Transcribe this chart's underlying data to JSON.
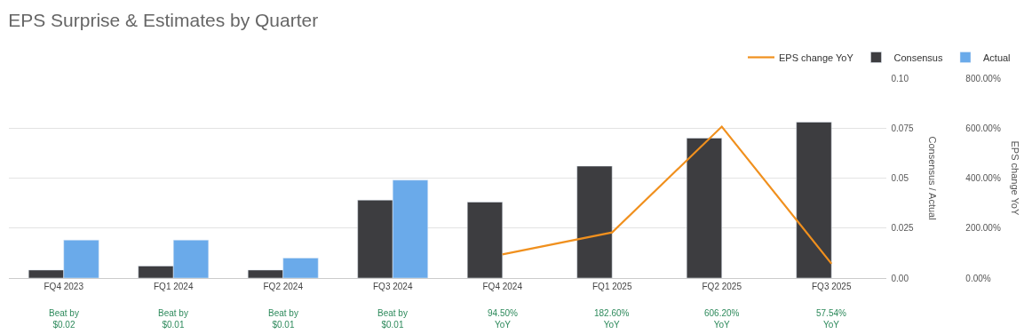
{
  "chart_data": {
    "type": "bar",
    "title": "EPS Surprise & Estimates by Quarter",
    "categories": [
      "FQ4 2023",
      "FQ1 2024",
      "FQ2 2024",
      "FQ3 2024",
      "FQ4 2024",
      "FQ1 2025",
      "FQ2 2025",
      "FQ3 2025"
    ],
    "series": [
      {
        "name": "EPS change YoY",
        "type": "line",
        "axis": "y2",
        "color": "#f0901e",
        "values": [
          null,
          null,
          null,
          null,
          94.5,
          182.6,
          606.2,
          57.54
        ]
      },
      {
        "name": "Consensus",
        "color": "#3d3d40",
        "values": [
          0.004,
          0.006,
          0.004,
          0.039,
          0.038,
          0.056,
          0.07,
          0.078
        ]
      },
      {
        "name": "Actual",
        "color": "#6aaaea",
        "values": [
          0.019,
          0.019,
          0.01,
          0.049,
          null,
          null,
          null,
          null
        ]
      }
    ],
    "ylabel": "Consensus / Actual",
    "y2label": "EPS change YoY",
    "ylim": [
      0,
      0.1
    ],
    "yticks": [
      {
        "value": 0,
        "label": "0.00"
      },
      0.025,
      {
        "value": 0.05,
        "label": "0.05"
      },
      0.075,
      {
        "value": 0.1,
        "label": "0.10"
      }
    ],
    "y2lim": [
      0,
      800
    ],
    "y2ticks": [
      {
        "value": 0,
        "label": "0.00%"
      },
      {
        "value": 200,
        "label": "200.00%"
      },
      {
        "value": 400,
        "label": "400.00%"
      },
      {
        "value": 600,
        "label": "600.00%"
      },
      {
        "value": 800,
        "label": "800.00%"
      }
    ],
    "grid": "y",
    "legend": "top right",
    "marker": "none",
    "line_style": "solid",
    "annotations": [
      "Beat by\n$0.02",
      "Beat by\n$0.01",
      "Beat by\n$0.01",
      "Beat by\n$0.01",
      "94.50%\nYoY",
      "182.60%\nYoY",
      "606.20%\nYoY",
      "57.54%\nYoY"
    ]
  }
}
